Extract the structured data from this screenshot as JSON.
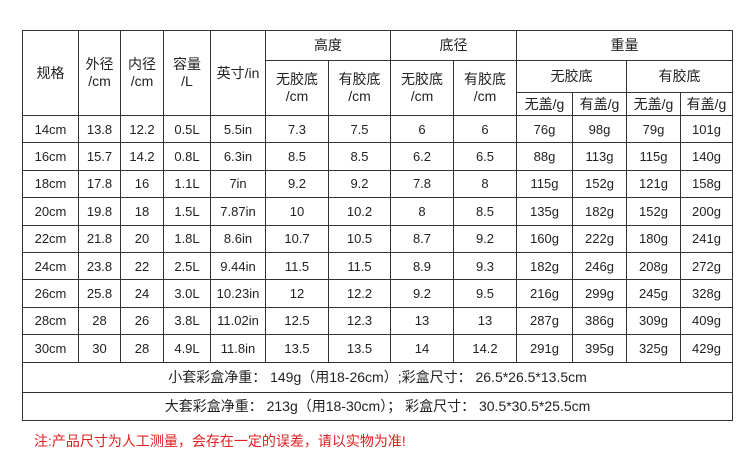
{
  "table": {
    "header": [
      [
        [
          "规格"
        ],
        [
          "外径",
          "/cm"
        ],
        [
          "内径",
          "/cm"
        ],
        [
          "容量",
          "/L"
        ],
        [
          "英寸/in"
        ],
        [
          "高度"
        ],
        [
          "底径"
        ],
        [
          "重量"
        ]
      ],
      [
        [
          "无胶底",
          "/cm"
        ],
        [
          "有胶底",
          "/cm"
        ],
        [
          "无胶底",
          "/cm"
        ],
        [
          "有胶底",
          "/cm"
        ],
        [
          "无胶底"
        ],
        [
          "有胶底"
        ]
      ],
      [
        [
          "无盖/g"
        ],
        [
          "有盖/g"
        ],
        [
          "无盖/g"
        ],
        [
          "有盖/g"
        ]
      ]
    ],
    "rows": [
      [
        "14cm",
        "13.8",
        "12.2",
        "0.5L",
        "5.5in",
        "7.3",
        "7.5",
        "6",
        "6",
        "76g",
        "98g",
        "79g",
        "101g"
      ],
      [
        "16cm",
        "15.7",
        "14.2",
        "0.8L",
        "6.3in",
        "8.5",
        "8.5",
        "6.2",
        "6.5",
        "88g",
        "113g",
        "115g",
        "140g"
      ],
      [
        "18cm",
        "17.8",
        "16",
        "1.1L",
        "7in",
        "9.2",
        "9.2",
        "7.8",
        "8",
        "115g",
        "152g",
        "121g",
        "158g"
      ],
      [
        "20cm",
        "19.8",
        "18",
        "1.5L",
        "7.87in",
        "10",
        "10.2",
        "8",
        "8.5",
        "135g",
        "182g",
        "152g",
        "200g"
      ],
      [
        "22cm",
        "21.8",
        "20",
        "1.8L",
        "8.6in",
        "10.7",
        "10.5",
        "8.7",
        "9.2",
        "160g",
        "222g",
        "180g",
        "241g"
      ],
      [
        "24cm",
        "23.8",
        "22",
        "2.5L",
        "9.44in",
        "11.5",
        "11.5",
        "8.9",
        "9.3",
        "182g",
        "246g",
        "208g",
        "272g"
      ],
      [
        "26cm",
        "25.8",
        "24",
        "3.0L",
        "10.23in",
        "12",
        "12.2",
        "9.2",
        "9.5",
        "216g",
        "299g",
        "245g",
        "328g"
      ],
      [
        "28cm",
        "28",
        "26",
        "3.8L",
        "11.02in",
        "12.5",
        "12.3",
        "13",
        "13",
        "287g",
        "386g",
        "309g",
        "409g"
      ],
      [
        "30cm",
        "30",
        "28",
        "4.9L",
        "11.8in",
        "13.5",
        "13.5",
        "14",
        "14.2",
        "291g",
        "395g",
        "325g",
        "429g"
      ]
    ],
    "footer": [
      "小套彩盒净重： 149g（用18-26cm）;彩盒尺寸： 26.5*26.5*13.5cm",
      "大套彩盒净重： 213g（用18-30cm）； 彩盒尺寸： 30.5*30.5*25.5cm"
    ]
  },
  "note": "注:产品尺寸为人工测量，会存在一定的误差，请以实物为准!"
}
